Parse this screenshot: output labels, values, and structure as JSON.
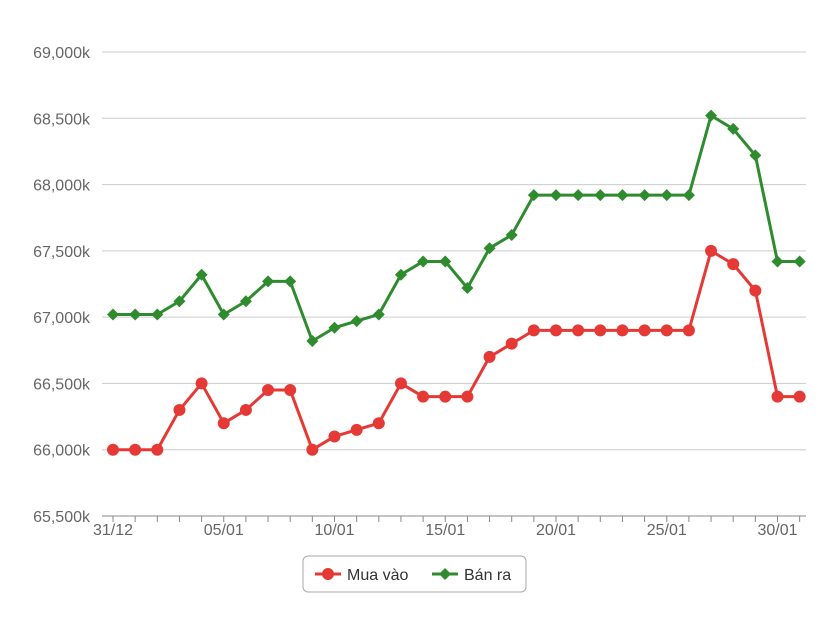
{
  "chart_data": {
    "type": "line",
    "x_tick_labels": [
      "31/12",
      "05/01",
      "10/01",
      "15/01",
      "20/01",
      "25/01",
      "30/01"
    ],
    "y_tick_labels": [
      "65,500k",
      "66,000k",
      "66,500k",
      "67,000k",
      "67,500k",
      "68,000k",
      "68,500k",
      "69,000k"
    ],
    "ylim": [
      65500,
      69000
    ],
    "x_count": 32,
    "grid": true,
    "legend_position": "bottom",
    "series": [
      {
        "name": "Mua vào",
        "color": "#e53935",
        "marker": "circle",
        "values": [
          66000,
          66000,
          66000,
          66300,
          66500,
          66200,
          66300,
          66450,
          66450,
          66000,
          66100,
          66150,
          66200,
          66500,
          66400,
          66400,
          66400,
          66700,
          66800,
          66900,
          66900,
          66900,
          66900,
          66900,
          66900,
          66900,
          66900,
          67500,
          67400,
          67200,
          66400,
          66400
        ]
      },
      {
        "name": "Bán ra",
        "color": "#2e8b2e",
        "marker": "diamond",
        "values": [
          67020,
          67020,
          67020,
          67120,
          67320,
          67020,
          67120,
          67270,
          67270,
          66820,
          66920,
          66970,
          67020,
          67320,
          67420,
          67420,
          67220,
          67520,
          67620,
          67920,
          67920,
          67920,
          67920,
          67920,
          67920,
          67920,
          67920,
          68520,
          68420,
          68220,
          67420,
          67420
        ]
      }
    ]
  }
}
